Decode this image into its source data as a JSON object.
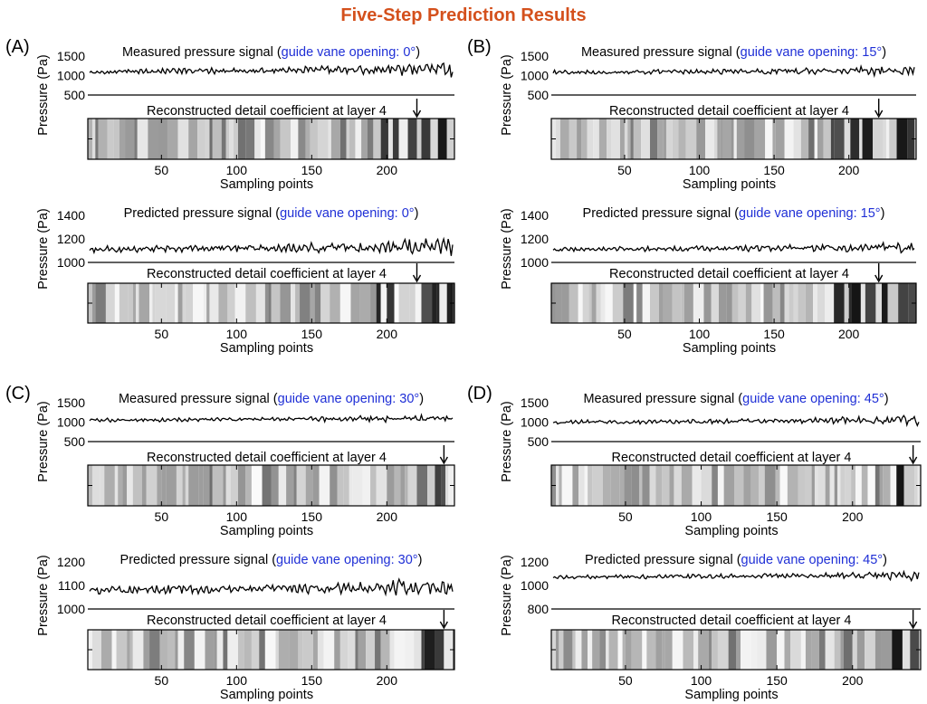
{
  "title": "Five-Step Prediction Results",
  "colors": {
    "title": "#d4501c",
    "highlight": "#1f2fd6",
    "signal_line": "#000000",
    "axis": "#000000"
  },
  "common": {
    "ylabel": "Pressure (Pa)",
    "xlabel": "Sampling points",
    "x_ticks": [
      "50",
      "100",
      "150",
      "200"
    ],
    "strip_label": "Reconstructed detail coefficient at layer 4",
    "marker": "arrow-down"
  },
  "chart_data": [
    {
      "panel": "(A)",
      "type": "line",
      "series": [
        {
          "label_prefix": "Measured pressure signal (",
          "label_highlight": "guide vane opening: 0°",
          "label_suffix": ")",
          "y_ticks": [
            "1500",
            "1000",
            "500"
          ],
          "ylim": [
            500,
            1500
          ],
          "base": 1100,
          "amp": 100,
          "growth": 1.8
        }
      ],
      "strip": {
        "xlim": [
          1,
          245
        ],
        "arrow_x": 220,
        "dark_start": 192,
        "seed": 11
      },
      "pred": {
        "label_prefix": "Predicted pressure signal (",
        "label_highlight": "guide vane opening: 0°",
        "label_suffix": ")",
        "y_ticks": [
          "1400",
          "1200",
          "1000"
        ],
        "ylim": [
          1000,
          1400
        ],
        "base": 1110,
        "amp": 40,
        "growth": 2.2
      },
      "pred_strip": {
        "xlim": [
          1,
          245
        ],
        "arrow_x": 220,
        "dark_start": 190,
        "seed": 13
      }
    },
    {
      "panel": "(B)",
      "type": "line",
      "series": [
        {
          "label_prefix": "Measured pressure signal (",
          "label_highlight": "guide vane opening: 15°",
          "label_suffix": ")",
          "y_ticks": [
            "1500",
            "1000",
            "500"
          ],
          "ylim": [
            500,
            1500
          ],
          "base": 1080,
          "amp": 80,
          "growth": 1.6
        }
      ],
      "strip": {
        "xlim": [
          1,
          245
        ],
        "arrow_x": 220,
        "dark_start": 188,
        "seed": 17
      },
      "pred": {
        "label_prefix": "Predicted pressure signal (",
        "label_highlight": "guide vane opening: 15°",
        "label_suffix": ")",
        "y_ticks": [
          "1400",
          "1200",
          "1000"
        ],
        "ylim": [
          1000,
          1400
        ],
        "base": 1110,
        "amp": 30,
        "growth": 1.6
      },
      "pred_strip": {
        "xlim": [
          1,
          245
        ],
        "arrow_x": 220,
        "dark_start": 190,
        "seed": 19
      }
    },
    {
      "panel": "(C)",
      "type": "line",
      "series": [
        {
          "label_prefix": "Measured pressure signal (",
          "label_highlight": "guide vane opening: 30°",
          "label_suffix": ")",
          "y_ticks": [
            "1500",
            "1000",
            "500"
          ],
          "ylim": [
            500,
            1500
          ],
          "base": 1050,
          "amp": 70,
          "growth": 1.4
        }
      ],
      "strip": {
        "xlim": [
          1,
          245
        ],
        "arrow_x": 238,
        "dark_start": 222,
        "seed": 23
      },
      "pred": {
        "label_prefix": "Predicted pressure signal (",
        "label_highlight": "guide vane opening: 30°",
        "label_suffix": ")",
        "y_ticks": [
          "1200",
          "1100",
          "1000"
        ],
        "ylim": [
          1000,
          1200
        ],
        "base": 1080,
        "amp": 25,
        "growth": 1.4
      },
      "pred_strip": {
        "xlim": [
          1,
          245
        ],
        "arrow_x": 238,
        "dark_start": 222,
        "seed": 29
      }
    },
    {
      "panel": "(D)",
      "type": "line",
      "series": [
        {
          "label_prefix": "Measured pressure signal (",
          "label_highlight": "guide vane opening: 45°",
          "label_suffix": ")",
          "y_ticks": [
            "1500",
            "1000",
            "500"
          ],
          "ylim": [
            500,
            1500
          ],
          "base": 1000,
          "amp": 80,
          "growth": 1.3
        }
      ],
      "strip": {
        "xlim": [
          1,
          245
        ],
        "arrow_x": 240,
        "dark_start": 226,
        "seed": 31
      },
      "pred": {
        "label_prefix": "Predicted pressure signal (",
        "label_highlight": "guide vane opening: 45°",
        "label_suffix": ")",
        "y_ticks": [
          "1200",
          "1000",
          "800"
        ],
        "ylim": [
          800,
          1200
        ],
        "base": 1070,
        "amp": 25,
        "growth": 1.5
      },
      "pred_strip": {
        "xlim": [
          1,
          245
        ],
        "arrow_x": 240,
        "dark_start": 226,
        "seed": 37
      }
    }
  ]
}
